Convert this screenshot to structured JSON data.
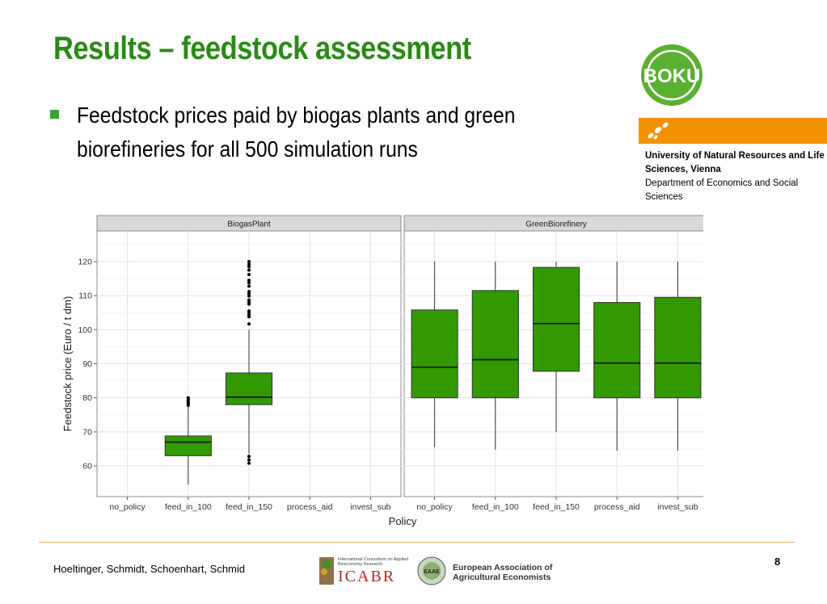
{
  "title": "Results – feedstock assessment",
  "bullet": "Feedstock prices paid by biogas plants and green biorefineries for all 500 simulation runs",
  "logo_text": "BOKU",
  "university": {
    "name": "University of Natural Resources and Life Sciences, Vienna",
    "department": "Department of Economics and Social Sciences"
  },
  "footer": {
    "authors": "Hoeltinger, Schmidt, Schoenhart, Schmid",
    "page": "8",
    "icabr_small": "International Consortium on Applied Bioeconomy Research",
    "icabr_big": "ICABR",
    "eaae_badge": "EAAE",
    "eaae_line1": "European Association of",
    "eaae_line2": "Agricultural Economists"
  },
  "colors": {
    "title_green": "#2a8a16",
    "box_fill": "#339900",
    "orange": "#f39200",
    "panel_bg": "#ffffff",
    "strip_bg": "#d9d9d9"
  },
  "chart_data": {
    "type": "boxplot",
    "xlabel": "Policy",
    "ylabel": "Feedstock price (Euro / t dm)",
    "ylim": [
      51,
      129
    ],
    "yticks": [
      60,
      70,
      80,
      90,
      100,
      110,
      120
    ],
    "categories": [
      "no_policy",
      "feed_in_100",
      "feed_in_150",
      "process_aid",
      "invest_sub"
    ],
    "grid": true,
    "panels": [
      {
        "name": "BiogasPlant",
        "boxes": [
          {
            "category": "feed_in_100",
            "whisker_low": 54.5,
            "q1": 63.0,
            "median": 67.0,
            "q3": 68.8,
            "whisker_high": 77.5,
            "outliers": [
              77.8,
              78.2,
              78.5,
              78.8,
              79.1,
              79.4,
              79.7,
              80.0
            ]
          },
          {
            "category": "feed_in_150",
            "whisker_low": 63.5,
            "q1": 78.0,
            "median": 80.2,
            "q3": 87.3,
            "whisker_high": 100.0,
            "outliers": [
              60.8,
              61.8,
              62.8,
              101.7,
              103.8,
              104.3,
              104.9,
              105.5,
              107.5,
              108.1,
              108.7,
              109.9,
              110.5,
              111.2,
              112.8,
              113.8,
              114.5,
              116.2,
              117.5,
              118.5,
              119.2,
              120.0
            ]
          }
        ]
      },
      {
        "name": "GreenBiorefinery",
        "boxes": [
          {
            "category": "no_policy",
            "whisker_low": 65.5,
            "q1": 80.0,
            "median": 89.0,
            "q3": 105.8,
            "whisker_high": 120.0,
            "outliers": []
          },
          {
            "category": "feed_in_100",
            "whisker_low": 64.8,
            "q1": 80.0,
            "median": 91.2,
            "q3": 111.5,
            "whisker_high": 120.0,
            "outliers": []
          },
          {
            "category": "feed_in_150",
            "whisker_low": 70.0,
            "q1": 87.8,
            "median": 101.8,
            "q3": 118.3,
            "whisker_high": 120.0,
            "outliers": []
          },
          {
            "category": "process_aid",
            "whisker_low": 64.5,
            "q1": 80.0,
            "median": 90.2,
            "q3": 108.0,
            "whisker_high": 120.0,
            "outliers": []
          },
          {
            "category": "invest_sub",
            "whisker_low": 64.5,
            "q1": 80.0,
            "median": 90.2,
            "q3": 109.5,
            "whisker_high": 120.0,
            "outliers": []
          }
        ]
      }
    ]
  }
}
